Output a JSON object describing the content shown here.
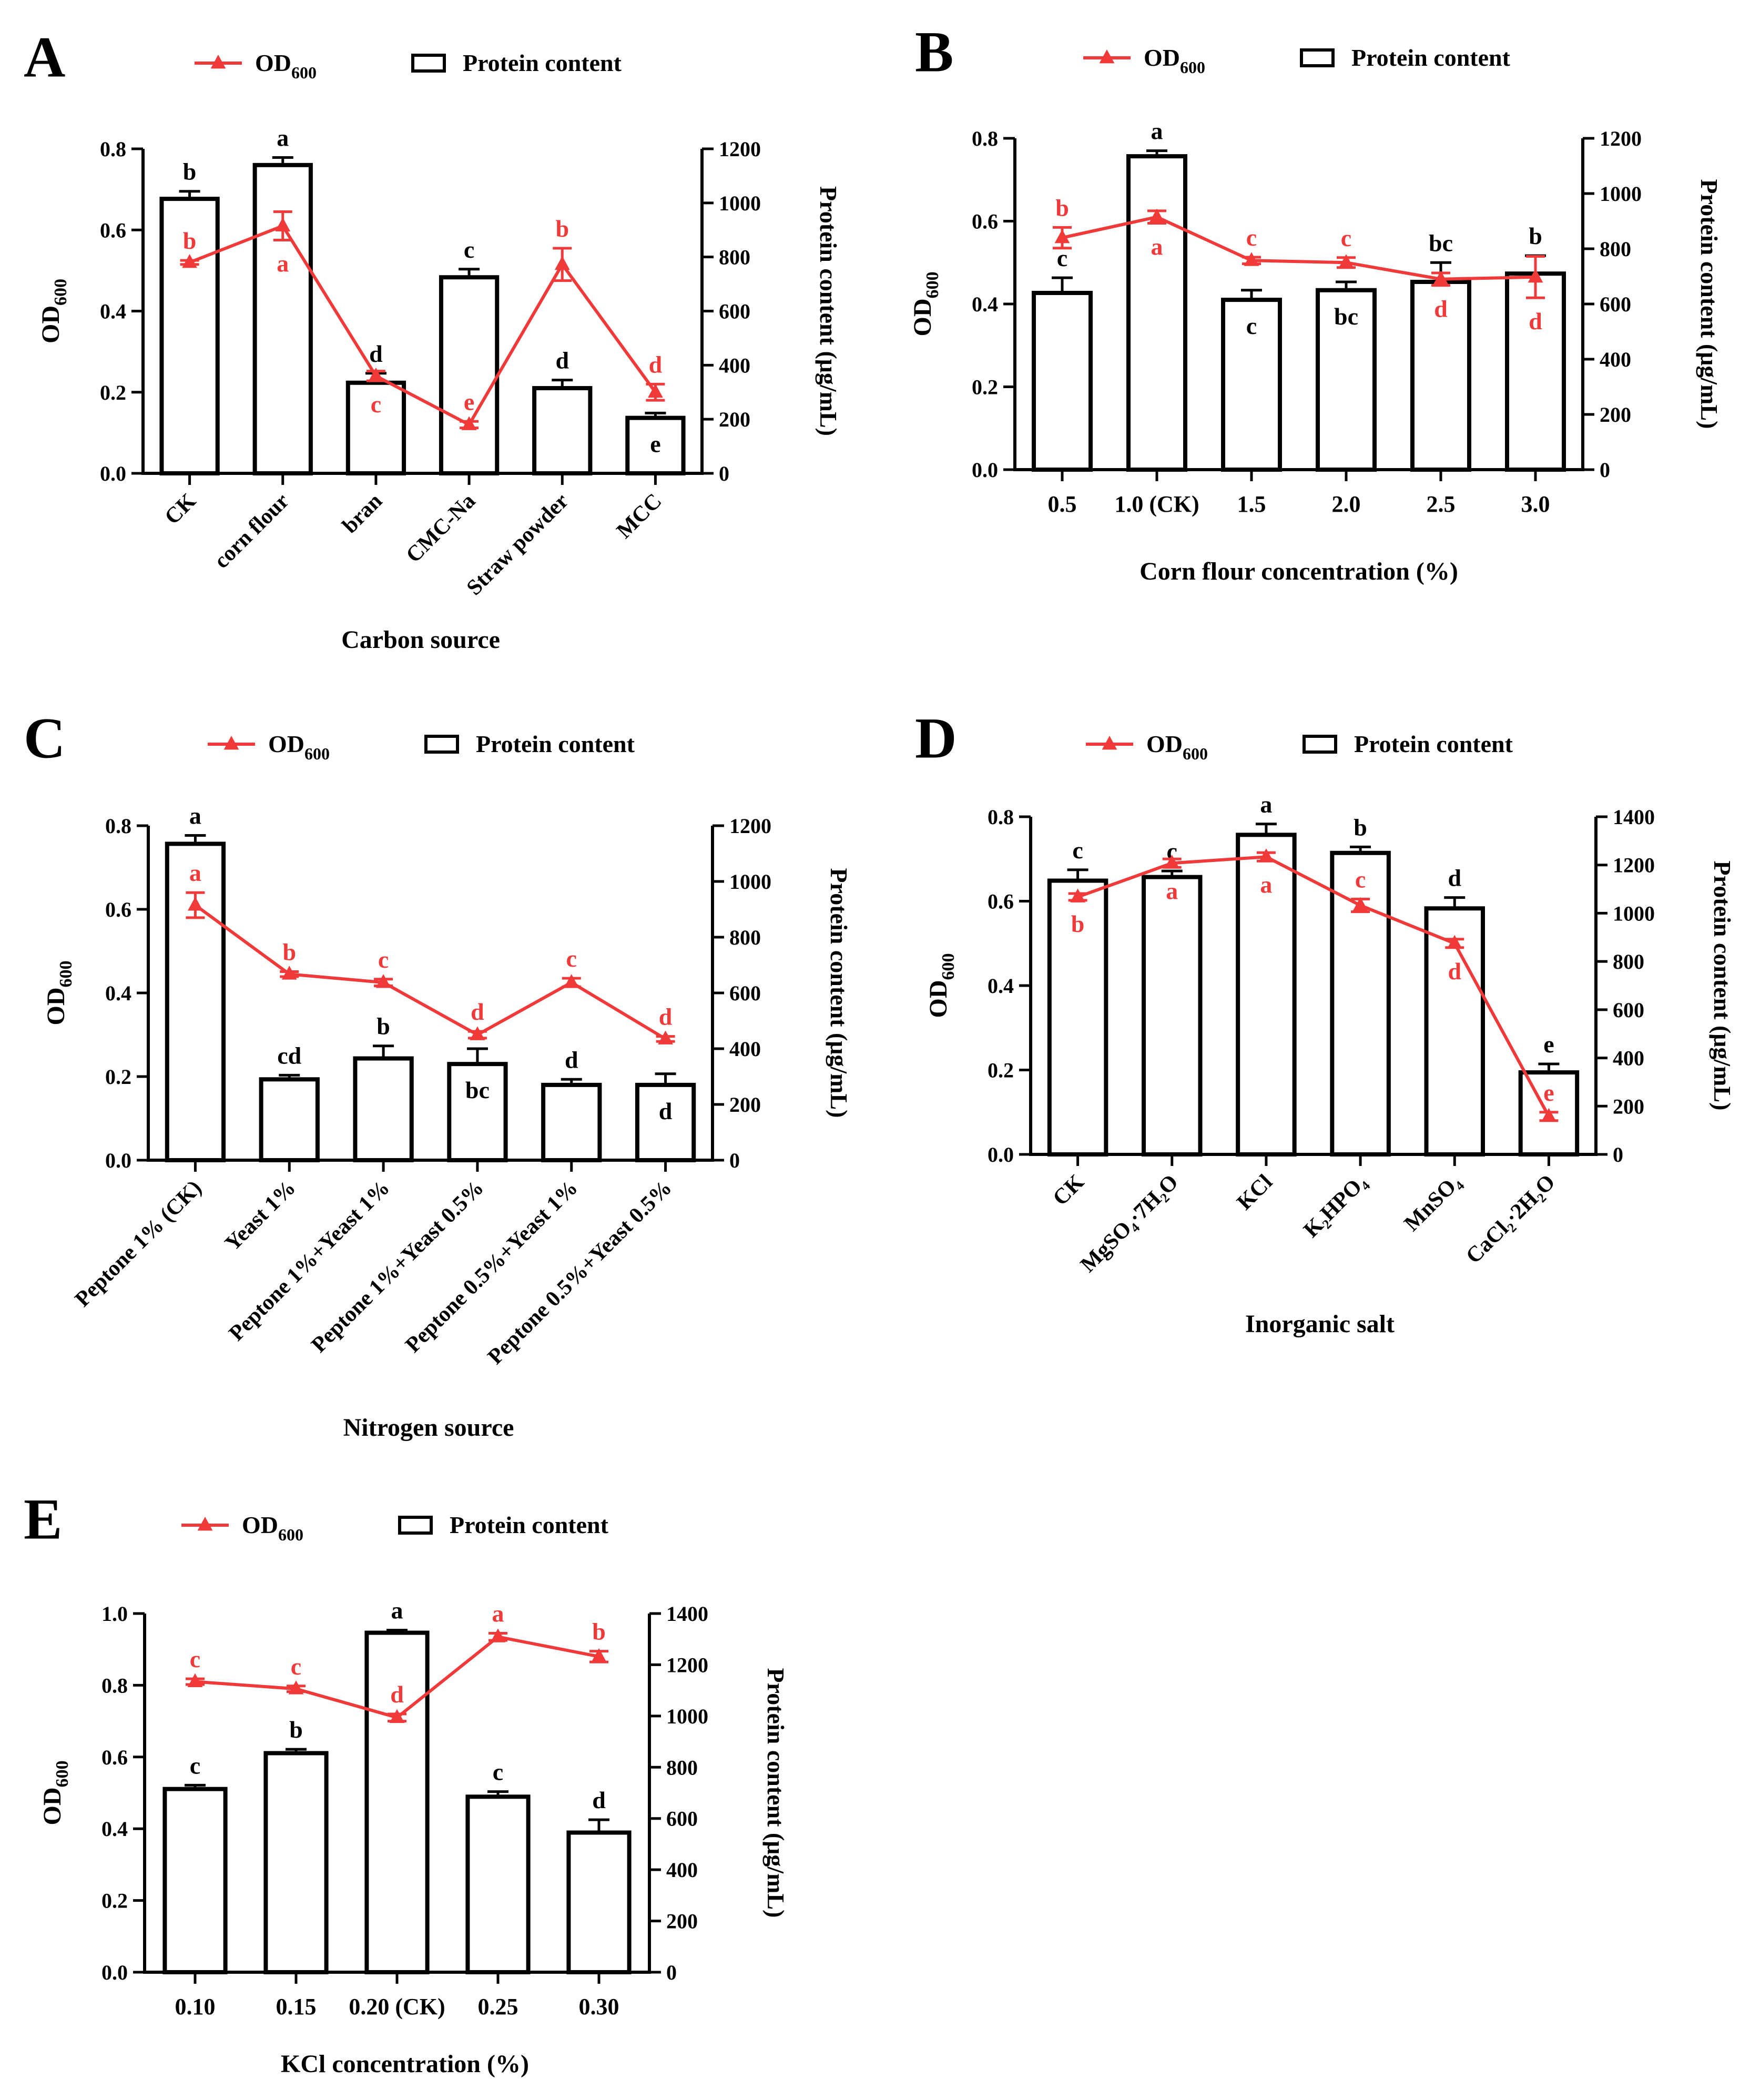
{
  "figure": {
    "legend_line_label": "OD",
    "legend_line_sub": "600",
    "legend_bar_label": "Protein content"
  },
  "colors": {
    "line": "#f03a3a",
    "bar": "#000000",
    "letter_bar": "#000000",
    "letter_line": "#f03a3a"
  },
  "chart_data": [
    {
      "panel": "A",
      "type": "bar+line",
      "xlabel": "Carbon source",
      "ylabel_left_main": "OD",
      "ylabel_left_sub": "600",
      "ylabel_right": "Protein content (μg/mL)",
      "categories": [
        "CK",
        "corn flour",
        "bran",
        "CMC-Na",
        "Straw powder",
        "MCC"
      ],
      "rotate_ticks": true,
      "ylim_left": [
        0,
        0.8
      ],
      "yticks_left": [
        "0.0",
        "0.2",
        "0.4",
        "0.6",
        "0.8"
      ],
      "ylim_right": [
        0,
        1200
      ],
      "yticks_right": [
        "0",
        "200",
        "400",
        "600",
        "800",
        "1000",
        "1200"
      ],
      "series": [
        {
          "name": "Protein content",
          "axis": "right",
          "values": [
            1015,
            1140,
            335,
            725,
            315,
            205
          ],
          "errors": [
            28,
            28,
            35,
            30,
            30,
            18
          ],
          "letters": [
            "b",
            "a",
            "d",
            "c",
            "d",
            "e"
          ],
          "letter_pos": [
            "above",
            "above",
            "above",
            "above",
            "above",
            "inside"
          ]
        },
        {
          "name": "OD600",
          "axis": "left",
          "values": [
            0.52,
            0.61,
            0.24,
            0.12,
            0.515,
            0.2
          ],
          "errors": [
            0.005,
            0.035,
            0.012,
            0.008,
            0.04,
            0.02
          ],
          "letters": [
            "b",
            "a",
            "c",
            "e",
            "b",
            "d"
          ],
          "letter_pos": [
            "above",
            "below",
            "below",
            "above",
            "above",
            "above"
          ]
        }
      ]
    },
    {
      "panel": "B",
      "type": "bar+line",
      "xlabel": "Corn flour concentration (%)",
      "ylabel_left_main": "OD",
      "ylabel_left_sub": "600",
      "ylabel_right": "Protein content (μg/mL)",
      "categories": [
        "0.5",
        "1.0 (CK)",
        "1.5",
        "2.0",
        "2.5",
        "3.0"
      ],
      "rotate_ticks": false,
      "ylim_left": [
        0,
        0.8
      ],
      "yticks_left": [
        "0.0",
        "0.2",
        "0.4",
        "0.6",
        "0.8"
      ],
      "ylim_right": [
        0,
        1200
      ],
      "yticks_right": [
        "0",
        "200",
        "400",
        "600",
        "800",
        "1000",
        "1200"
      ],
      "series": [
        {
          "name": "Protein content",
          "axis": "right",
          "values": [
            640,
            1135,
            615,
            650,
            680,
            710
          ],
          "errors": [
            55,
            20,
            35,
            30,
            70,
            65
          ],
          "letters": [
            "c",
            "a",
            "c",
            "bc",
            "bc",
            "b"
          ],
          "letter_pos": [
            "above",
            "above",
            "below",
            "below",
            "above",
            "above"
          ]
        },
        {
          "name": "OD600",
          "axis": "left",
          "values": [
            0.56,
            0.61,
            0.505,
            0.5,
            0.46,
            0.465
          ],
          "errors": [
            0.025,
            0.015,
            0.008,
            0.012,
            0.015,
            0.05
          ],
          "letters": [
            "b",
            "a",
            "c",
            "c",
            "d",
            "d"
          ],
          "letter_pos": [
            "above",
            "below",
            "above",
            "above",
            "below",
            "below"
          ]
        }
      ]
    },
    {
      "panel": "C",
      "type": "bar+line",
      "xlabel": "Nitrogen source",
      "ylabel_left_main": "OD",
      "ylabel_left_sub": "600",
      "ylabel_right": "Protein content (μg/mL)",
      "categories": [
        "Peptone 1% (CK)",
        "Yeast 1%",
        "Peptone 1%+Yeast 1%",
        "Peptone 1%+Yeast 0.5%",
        "Peptone 0.5%+Yeast 1%",
        "Peptone 0.5%+Yeast 0.5%"
      ],
      "rotate_ticks": true,
      "ylim_left": [
        0,
        0.8
      ],
      "yticks_left": [
        "0.0",
        "0.2",
        "0.4",
        "0.6",
        "0.8"
      ],
      "ylim_right": [
        0,
        1200
      ],
      "yticks_right": [
        "0",
        "200",
        "400",
        "600",
        "800",
        "1000",
        "1200"
      ],
      "series": [
        {
          "name": "Protein content",
          "axis": "right",
          "values": [
            1135,
            290,
            365,
            345,
            270,
            270
          ],
          "errors": [
            30,
            15,
            45,
            55,
            20,
            40
          ],
          "letters": [
            "a",
            "cd",
            "b",
            "bc",
            "d",
            "d"
          ],
          "letter_pos": [
            "above",
            "above",
            "above",
            "inside",
            "above",
            "inside"
          ]
        },
        {
          "name": "OD600",
          "axis": "left",
          "values": [
            0.61,
            0.445,
            0.425,
            0.3,
            0.425,
            0.29
          ],
          "errors": [
            0.03,
            0.006,
            0.008,
            0.008,
            0.01,
            0.006
          ],
          "letters": [
            "a",
            "b",
            "c",
            "d",
            "c",
            "d"
          ],
          "letter_pos": [
            "above",
            "above",
            "above",
            "above",
            "above",
            "above"
          ]
        }
      ]
    },
    {
      "panel": "D",
      "type": "bar+line",
      "xlabel": "Inorganic salt",
      "ylabel_left_main": "OD",
      "ylabel_left_sub": "600",
      "ylabel_right": "Protein content (μg/mL)",
      "categories": [
        "CK",
        "MgSO₄·7H₂O",
        "KCl",
        "K₂HPO₄",
        "MnSO₄",
        "CaCl₂·2H₂O"
      ],
      "rotate_ticks": true,
      "ylim_left": [
        0,
        0.8
      ],
      "yticks_left": [
        "0.0",
        "0.2",
        "0.4",
        "0.6",
        "0.8"
      ],
      "ylim_right": [
        0,
        1400
      ],
      "yticks_right": [
        "0",
        "200",
        "400",
        "600",
        "800",
        "1000",
        "1200",
        "1400"
      ],
      "series": [
        {
          "name": "Protein content",
          "axis": "right",
          "values": [
            1135,
            1150,
            1325,
            1250,
            1020,
            340
          ],
          "errors": [
            45,
            25,
            45,
            25,
            45,
            35
          ],
          "letters": [
            "c",
            "c",
            "a",
            "b",
            "d",
            "e"
          ],
          "letter_pos": [
            "above",
            "above",
            "above",
            "above",
            "above",
            "above"
          ]
        },
        {
          "name": "OD600",
          "axis": "left",
          "values": [
            0.61,
            0.69,
            0.705,
            0.59,
            0.5,
            0.09
          ],
          "errors": [
            0.008,
            0.01,
            0.01,
            0.015,
            0.01,
            0.01
          ],
          "letters": [
            "b",
            "a",
            "a",
            "c",
            "d",
            "e"
          ],
          "letter_pos": [
            "below",
            "below",
            "below",
            "above",
            "below",
            "above"
          ]
        }
      ]
    },
    {
      "panel": "E",
      "type": "bar+line",
      "xlabel": "KCl concentration (%)",
      "ylabel_left_main": "OD",
      "ylabel_left_sub": "600",
      "ylabel_right": "Protein content (μg/mL)",
      "categories": [
        "0.10",
        "0.15",
        "0.20 (CK)",
        "0.25",
        "0.30"
      ],
      "rotate_ticks": false,
      "ylim_left": [
        0,
        1.0
      ],
      "yticks_left": [
        "0.0",
        "0.2",
        "0.4",
        "0.6",
        "0.8",
        "1.0"
      ],
      "ylim_right": [
        0,
        1400
      ],
      "yticks_right": [
        "0",
        "200",
        "400",
        "600",
        "800",
        "1000",
        "1200",
        "1400"
      ],
      "series": [
        {
          "name": "Protein content",
          "axis": "right",
          "values": [
            715,
            855,
            1325,
            685,
            545
          ],
          "errors": [
            15,
            15,
            10,
            20,
            50
          ],
          "letters": [
            "c",
            "b",
            "a",
            "c",
            "d"
          ],
          "letter_pos": [
            "above",
            "above",
            "above",
            "above",
            "above"
          ]
        },
        {
          "name": "OD600",
          "axis": "left",
          "values": [
            0.81,
            0.79,
            0.71,
            0.935,
            0.88
          ],
          "errors": [
            0.008,
            0.008,
            0.01,
            0.01,
            0.015
          ],
          "letters": [
            "c",
            "c",
            "d",
            "a",
            "b"
          ],
          "letter_pos": [
            "above",
            "above",
            "above",
            "above",
            "above"
          ]
        }
      ]
    }
  ]
}
